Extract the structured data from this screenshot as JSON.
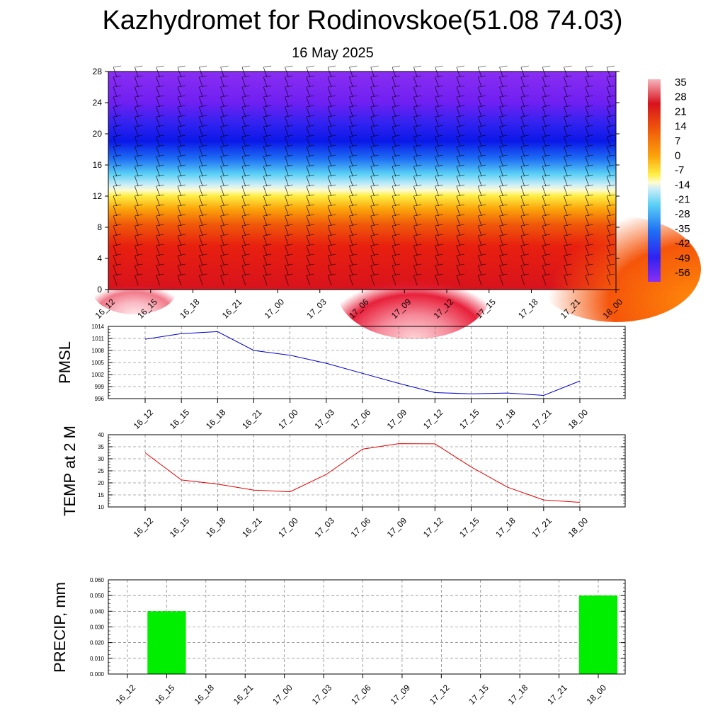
{
  "header": {
    "title": "Kazhydromet for Rodinovskoe(51.08 74.03)",
    "date": "16 May 2025"
  },
  "colors": {
    "pmsl_line": "#0000cc",
    "temp_line": "#e00000",
    "precip_bar": "#00ee00"
  },
  "chart_data": [
    {
      "type": "heatmap",
      "name": "vertical-profile",
      "title": "",
      "x_ticks": [
        "16_12",
        "16_15",
        "16_18",
        "16_21",
        "17_00",
        "17_03",
        "17_06",
        "17_09",
        "17_12",
        "17_15",
        "17_18",
        "17_21",
        "18_00"
      ],
      "y_ticks": [
        "0",
        "4",
        "8",
        "12",
        "16",
        "20",
        "24",
        "28"
      ],
      "ylim": [
        0,
        28
      ],
      "colorbar_labels": [
        "35",
        "28",
        "21",
        "14",
        "7",
        "0",
        "-7",
        "-14",
        "-21",
        "-28",
        "-35",
        "-42",
        "-49",
        "-56"
      ],
      "colorbar_range": [
        -60,
        38
      ],
      "description": "temperature field with wind barbs"
    },
    {
      "type": "line",
      "name": "pmsl",
      "ylabel": "PMSL",
      "categories": [
        "16_12",
        "16_15",
        "16_18",
        "16_21",
        "17_00",
        "17_03",
        "17_06",
        "17_09",
        "17_12",
        "17_15",
        "17_18",
        "17_21",
        "18_00"
      ],
      "values": [
        1010.8,
        1012.2,
        1012.7,
        1008.0,
        1006.8,
        1004.8,
        1002.3,
        999.8,
        997.5,
        997.2,
        997.4,
        996.8,
        1000.4
      ],
      "ylim": [
        996,
        1014
      ],
      "y_ticks": [
        "996",
        "999",
        "1002",
        "1005",
        "1008",
        "1011",
        "1014"
      ],
      "grid": true
    },
    {
      "type": "line",
      "name": "temp2m",
      "ylabel": "TEMP at 2 M",
      "categories": [
        "16_12",
        "16_15",
        "16_18",
        "16_21",
        "17_00",
        "17_03",
        "17_06",
        "17_09",
        "17_12",
        "17_15",
        "17_18",
        "17_21",
        "18_00"
      ],
      "values": [
        32.5,
        21.2,
        19.5,
        17.0,
        16.3,
        23.5,
        34.0,
        36.3,
        36.2,
        26.6,
        18.2,
        12.9,
        11.9
      ],
      "ylim": [
        10,
        40
      ],
      "y_ticks": [
        "10",
        "15",
        "20",
        "25",
        "30",
        "35",
        "40"
      ],
      "grid": true
    },
    {
      "type": "bar",
      "name": "precip",
      "ylabel": "PRECIP, mm",
      "categories": [
        "16_12",
        "16_15",
        "16_18",
        "16_21",
        "17_00",
        "17_03",
        "17_06",
        "17_09",
        "17_12",
        "17_15",
        "17_18",
        "17_21",
        "18_00"
      ],
      "values": [
        0,
        0.04,
        0,
        0,
        0,
        0,
        0,
        0,
        0,
        0,
        0,
        0,
        0.05
      ],
      "ylim": [
        0,
        0.06
      ],
      "y_ticks": [
        "0.000",
        "0.010",
        "0.020",
        "0.030",
        "0.040",
        "0.050",
        "0.060"
      ],
      "grid": true
    }
  ]
}
